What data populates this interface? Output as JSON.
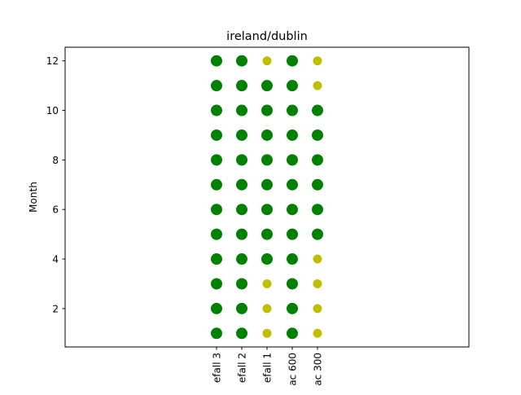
{
  "chart_data": {
    "type": "scatter",
    "title": "ireland/dublin",
    "xlabel": "",
    "ylabel": "Month",
    "categories": [
      "efall 3",
      "efall 2",
      "efall 1",
      "ac 600",
      "ac 300"
    ],
    "y_ticks": [
      2,
      4,
      6,
      8,
      10,
      12
    ],
    "ylim": [
      0.45,
      12.55
    ],
    "xlim": [
      -6,
      10
    ],
    "grid": false,
    "colors": {
      "green": "#008000",
      "yellow": "#bfbf00"
    },
    "series": [
      {
        "category": "efall 3",
        "points": [
          {
            "y": 1,
            "c": "green"
          },
          {
            "y": 2,
            "c": "green"
          },
          {
            "y": 3,
            "c": "green"
          },
          {
            "y": 4,
            "c": "green"
          },
          {
            "y": 5,
            "c": "green"
          },
          {
            "y": 6,
            "c": "green"
          },
          {
            "y": 7,
            "c": "green"
          },
          {
            "y": 8,
            "c": "green"
          },
          {
            "y": 9,
            "c": "green"
          },
          {
            "y": 10,
            "c": "green"
          },
          {
            "y": 11,
            "c": "green"
          },
          {
            "y": 12,
            "c": "green"
          }
        ]
      },
      {
        "category": "efall 2",
        "points": [
          {
            "y": 1,
            "c": "green"
          },
          {
            "y": 2,
            "c": "green"
          },
          {
            "y": 3,
            "c": "green"
          },
          {
            "y": 4,
            "c": "green"
          },
          {
            "y": 5,
            "c": "green"
          },
          {
            "y": 6,
            "c": "green"
          },
          {
            "y": 7,
            "c": "green"
          },
          {
            "y": 8,
            "c": "green"
          },
          {
            "y": 9,
            "c": "green"
          },
          {
            "y": 10,
            "c": "green"
          },
          {
            "y": 11,
            "c": "green"
          },
          {
            "y": 12,
            "c": "green"
          }
        ]
      },
      {
        "category": "efall 1",
        "points": [
          {
            "y": 1,
            "c": "yellow"
          },
          {
            "y": 2,
            "c": "yellow"
          },
          {
            "y": 3,
            "c": "yellow"
          },
          {
            "y": 4,
            "c": "green"
          },
          {
            "y": 5,
            "c": "green"
          },
          {
            "y": 6,
            "c": "green"
          },
          {
            "y": 7,
            "c": "green"
          },
          {
            "y": 8,
            "c": "green"
          },
          {
            "y": 9,
            "c": "green"
          },
          {
            "y": 10,
            "c": "green"
          },
          {
            "y": 11,
            "c": "green"
          },
          {
            "y": 12,
            "c": "yellow"
          }
        ]
      },
      {
        "category": "ac 600",
        "points": [
          {
            "y": 1,
            "c": "green"
          },
          {
            "y": 2,
            "c": "green"
          },
          {
            "y": 3,
            "c": "green"
          },
          {
            "y": 4,
            "c": "green"
          },
          {
            "y": 5,
            "c": "green"
          },
          {
            "y": 6,
            "c": "green"
          },
          {
            "y": 7,
            "c": "green"
          },
          {
            "y": 8,
            "c": "green"
          },
          {
            "y": 9,
            "c": "green"
          },
          {
            "y": 10,
            "c": "green"
          },
          {
            "y": 11,
            "c": "green"
          },
          {
            "y": 12,
            "c": "green"
          }
        ]
      },
      {
        "category": "ac 300",
        "points": [
          {
            "y": 1,
            "c": "yellow"
          },
          {
            "y": 2,
            "c": "yellow"
          },
          {
            "y": 3,
            "c": "yellow"
          },
          {
            "y": 4,
            "c": "yellow"
          },
          {
            "y": 5,
            "c": "green"
          },
          {
            "y": 6,
            "c": "green"
          },
          {
            "y": 7,
            "c": "green"
          },
          {
            "y": 8,
            "c": "green"
          },
          {
            "y": 9,
            "c": "green"
          },
          {
            "y": 10,
            "c": "green"
          },
          {
            "y": 11,
            "c": "yellow"
          },
          {
            "y": 12,
            "c": "yellow"
          }
        ]
      }
    ]
  }
}
